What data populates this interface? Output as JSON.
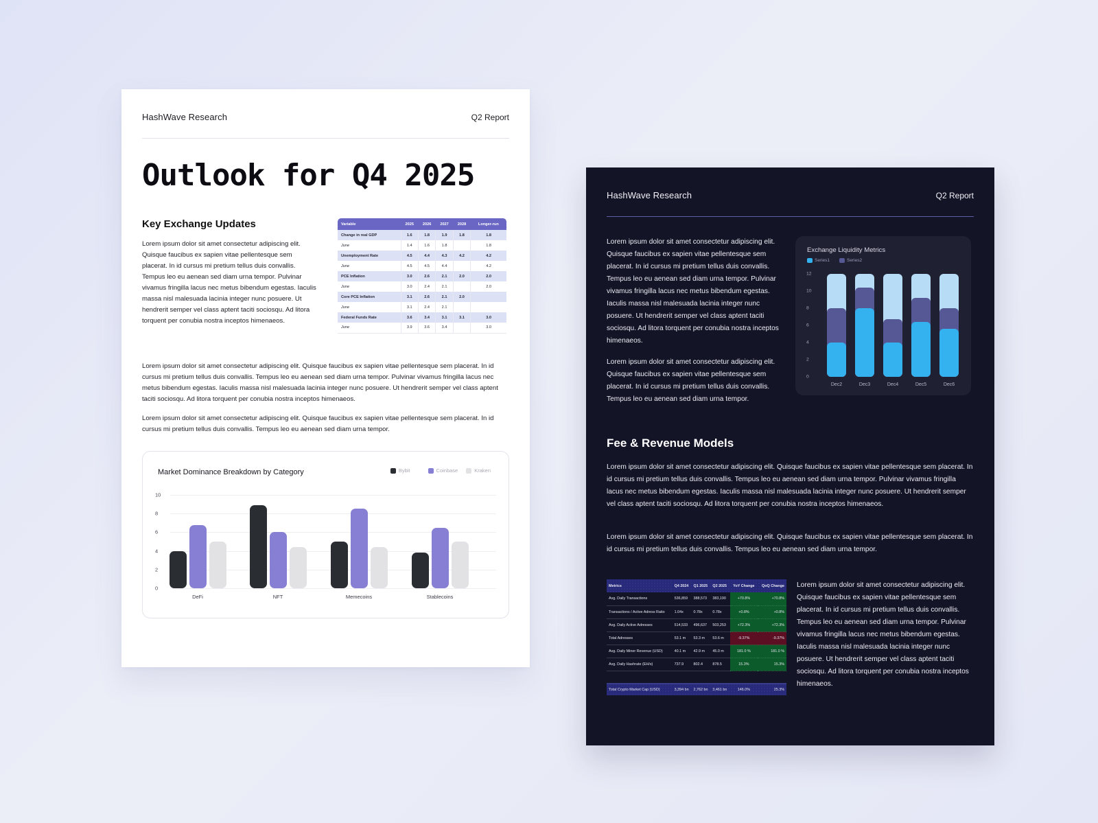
{
  "light_page": {
    "header": {
      "brand": "HashWave Research",
      "report": "Q2 Report"
    },
    "title": "Outlook for Q4 2025",
    "section_heading": "Key Exchange Updates",
    "intro_paragraph": "Lorem ipsum dolor sit amet consectetur adipiscing elit. Quisque faucibus ex sapien vitae pellentesque sem placerat. In id cursus mi pretium tellus duis convallis. Tempus leo eu aenean sed diam urna tempor. Pulvinar vivamus fringilla lacus nec metus bibendum egestas. Iaculis massa nisl malesuada lacinia integer nunc posuere. Ut hendrerit semper vel class aptent taciti sociosqu. Ad litora torquent per conubia nostra inceptos himenaeos.",
    "paragraph_2": "Lorem ipsum dolor sit amet consectetur adipiscing elit. Quisque faucibus ex sapien vitae pellentesque sem placerat. In id cursus mi pretium tellus duis convallis. Tempus leo eu aenean sed diam urna tempor. Pulvinar vivamus fringilla lacus nec metus bibendum egestas. Iaculis massa nisl malesuada lacinia integer nunc posuere. Ut hendrerit semper vel class aptent taciti sociosqu. Ad litora torquent per conubia nostra inceptos himenaeos.",
    "paragraph_3": "Lorem ipsum dolor sit amet consectetur adipiscing elit. Quisque faucibus ex sapien vitae pellentesque sem placerat. In id cursus mi pretium tellus duis convallis. Tempus leo eu aenean sed diam urna tempor.",
    "econ_table": {
      "headers": [
        "Variable",
        "2025",
        "2026",
        "2027",
        "2028",
        "Longer-run"
      ],
      "rows": [
        {
          "type": "main",
          "cells": [
            "Change in real GDP",
            "1.6",
            "1.8",
            "1.9",
            "1.8",
            "1.8"
          ]
        },
        {
          "type": "sub",
          "cells": [
            "June",
            "1.4",
            "1.6",
            "1.8",
            "",
            "1.8"
          ]
        },
        {
          "type": "main",
          "cells": [
            "Unemployment Rate",
            "4.5",
            "4.4",
            "4.3",
            "4.2",
            "4.2"
          ]
        },
        {
          "type": "sub",
          "cells": [
            "June",
            "4.5",
            "4.5",
            "4.4",
            "",
            "4.2"
          ]
        },
        {
          "type": "main",
          "cells": [
            "PCE Inflation",
            "3.0",
            "2.6",
            "2.1",
            "2.0",
            "2.0"
          ]
        },
        {
          "type": "sub",
          "cells": [
            "June",
            "3.0",
            "2.4",
            "2.1",
            "",
            "2.0"
          ]
        },
        {
          "type": "main",
          "cells": [
            "Core PCE Inflation",
            "3.1",
            "2.6",
            "2.1",
            "2.0",
            ""
          ]
        },
        {
          "type": "sub",
          "cells": [
            "June",
            "3.1",
            "2.4",
            "2.1",
            "",
            ""
          ]
        },
        {
          "type": "main",
          "cells": [
            "Federal Funds Rate",
            "3.6",
            "3.4",
            "3.1",
            "3.1",
            "3.0"
          ]
        },
        {
          "type": "sub",
          "cells": [
            "June",
            "3.9",
            "3.6",
            "3.4",
            "",
            "3.0"
          ]
        }
      ]
    }
  },
  "dark_page": {
    "header": {
      "brand": "HashWave Research",
      "report": "Q2 Report"
    },
    "paragraph_1": "Lorem ipsum dolor sit amet consectetur adipiscing elit. Quisque faucibus ex sapien vitae pellentesque sem placerat. In id cursus mi pretium tellus duis convallis. Tempus leo eu aenean sed diam urna tempor. Pulvinar vivamus fringilla lacus nec metus bibendum egestas. Iaculis massa nisl malesuada lacinia integer nunc posuere. Ut hendrerit semper vel class aptent taciti sociosqu. Ad litora torquent per conubia nostra inceptos himenaeos.",
    "paragraph_2": "Lorem ipsum dolor sit amet consectetur adipiscing elit. Quisque faucibus ex sapien vitae pellentesque sem placerat. In id cursus mi pretium tellus duis convallis. Tempus leo eu aenean sed diam urna tempor.",
    "section_heading": "Fee & Revenue Models",
    "wide_paragraph_1": "Lorem ipsum dolor sit amet consectetur adipiscing elit. Quisque faucibus ex sapien vitae pellentesque sem placerat. In id cursus mi pretium tellus duis convallis. Tempus leo eu aenean sed diam urna tempor. Pulvinar vivamus fringilla lacus nec metus bibendum egestas. Iaculis massa nisl malesuada lacinia integer nunc posuere. Ut hendrerit semper vel class aptent taciti sociosqu. Ad litora torquent per conubia nostra inceptos himenaeos.",
    "wide_paragraph_2": "Lorem ipsum dolor sit amet consectetur adipiscing elit. Quisque faucibus ex sapien vitae pellentesque sem placerat. In id cursus mi pretium tellus duis convallis. Tempus leo eu aenean sed diam urna tempor.",
    "side_paragraph": "Lorem ipsum dolor sit amet consectetur adipiscing elit. Quisque faucibus ex sapien vitae pellentesque sem placerat. In id cursus mi pretium tellus duis convallis. Tempus leo eu aenean sed diam urna tempor. Pulvinar vivamus fringilla lacus nec metus bibendum egestas. Iaculis massa nisl malesuada lacinia integer nunc posuere. Ut hendrerit semper vel class aptent taciti sociosqu. Ad litora torquent per conubia nostra inceptos himenaeos.",
    "metrics_table": {
      "headers": [
        "Metrics",
        "Q4 2024",
        "Q1 2025",
        "Q2 2025",
        "YoY Change",
        "QoQ Change"
      ],
      "rows": [
        {
          "cells": [
            "Avg. Daily Transactions",
            "536,859",
            "388,573",
            "383,190",
            "+70.8%",
            "+70.8%"
          ],
          "trend": "pos"
        },
        {
          "cells": [
            "Transactions / Active Adress Ratio",
            "1.04x",
            "0.78x",
            "0.78x",
            "+0.8%",
            "+0.8%"
          ],
          "trend": "pos"
        },
        {
          "cells": [
            "Avg. Daily Active Adresses",
            "514,533",
            "496,637",
            "503,253",
            "+72.3%",
            "+72.3%"
          ],
          "trend": "pos"
        },
        {
          "cells": [
            "Total Adresses",
            "53.1 m",
            "53.3 m",
            "53.6 m",
            "-9.37%",
            "-9.37%"
          ],
          "trend": "neg"
        },
        {
          "cells": [
            "Avg. Daily Miner Revenue (USD)",
            "40.1 m",
            "42.9 m",
            "45.0 m",
            "181.0 %",
            "181.0 %"
          ],
          "trend": "pos"
        },
        {
          "cells": [
            "Avg. Daily Hashrate (EH/s)",
            "737.9",
            "802.4",
            "878.5",
            "15.3%",
            "15.3%"
          ],
          "trend": "pos"
        }
      ],
      "total_row": [
        "Total Crypto Market Cap (USD)",
        "3,394 bn",
        "2,762 bn",
        "3,461 bn",
        "146.0%",
        "25.3%"
      ]
    }
  },
  "colors": {
    "background": "#e4e7f6",
    "dark_page": "#141427",
    "accent_purple": "#6a66c4",
    "bybit": "#2a2d31",
    "coinbase": "#877fd3",
    "kraken": "#e2e2e4",
    "series1": "#33b2ef",
    "series2": "#555894",
    "series_remainder": "#b7dcf5",
    "positive_cell": "#0c5b2a",
    "negative_cell": "#5c0f22"
  },
  "chart_data": [
    {
      "type": "bar",
      "title": "Market Dominance Breakdown by Category",
      "categories": [
        "DeFi",
        "NFT",
        "Memecoins",
        "Stablecoins"
      ],
      "series": [
        {
          "name": "Bybit",
          "values": [
            4,
            8.9,
            5,
            3.8
          ]
        },
        {
          "name": "Coinbase",
          "values": [
            6.8,
            6,
            8.5,
            6.5
          ]
        },
        {
          "name": "Kraken",
          "values": [
            5,
            4.4,
            4.4,
            5
          ]
        }
      ],
      "xlabel": "",
      "ylabel": "",
      "yticks": [
        "0",
        "2",
        "4",
        "6",
        "8",
        "10"
      ],
      "ylim": [
        0,
        10
      ],
      "grid": true,
      "legend_position": "top-right"
    },
    {
      "type": "bar",
      "stacked": true,
      "title": "Exchange Liquidity Metrics",
      "categories": [
        "Dec2",
        "Dec3",
        "Dec4",
        "Dec5",
        "Dec6"
      ],
      "series": [
        {
          "name": "Series1",
          "values": [
            4,
            8,
            4,
            6.4,
            5.6
          ]
        },
        {
          "name": "Series2",
          "values": [
            4,
            2.4,
            2.7,
            2.8,
            2.4
          ]
        }
      ],
      "stack_total": 12,
      "xlabel": "",
      "ylabel": "",
      "yticks": [
        "0",
        "2",
        "4",
        "6",
        "8",
        "10",
        "12"
      ],
      "ylim": [
        0,
        12
      ],
      "grid": false,
      "legend_position": "top-left"
    }
  ]
}
